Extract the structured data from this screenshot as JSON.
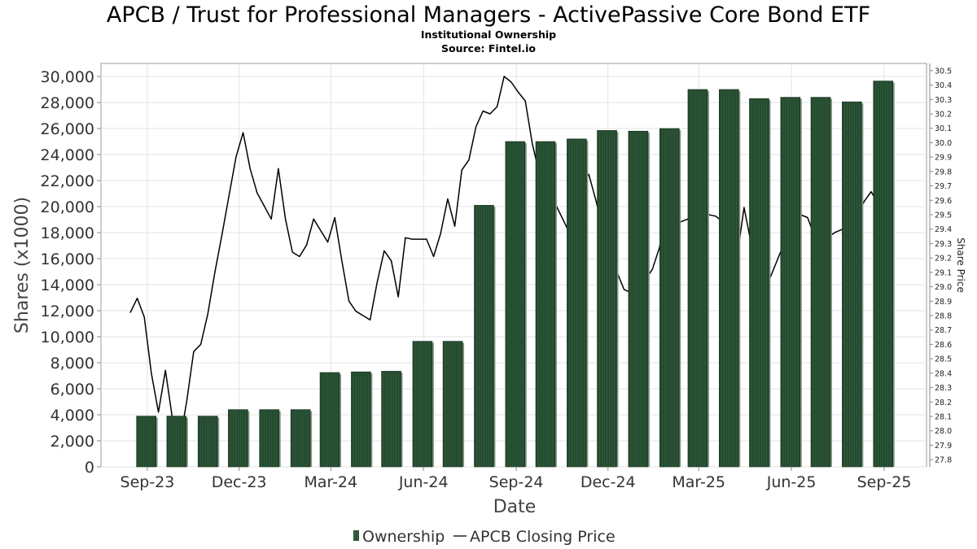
{
  "header": {
    "title": "APCB / Trust for Professional Managers - ActivePassive Core Bond ETF",
    "subtitle": "Institutional Ownership",
    "source": "Source: Fintel.io"
  },
  "colors": {
    "bar_fill": "#234a2e",
    "bar_shadow": "#8a9a8c",
    "price_line": "#000000",
    "grid": "#e3e3e3"
  },
  "chart_data": {
    "type": "bar",
    "xlabel": "Date",
    "ylabel": "Shares (x1000)",
    "ylabel_right": "Share Price",
    "ylim": [
      0,
      31000
    ],
    "y_ticks": [
      "0",
      "2,000",
      "4,000",
      "6,000",
      "8,000",
      "10,000",
      "12,000",
      "14,000",
      "16,000",
      "18,000",
      "20,000",
      "22,000",
      "24,000",
      "26,000",
      "28,000",
      "30,000"
    ],
    "y_tick_values": [
      0,
      2000,
      4000,
      6000,
      8000,
      10000,
      12000,
      14000,
      16000,
      18000,
      20000,
      22000,
      24000,
      26000,
      28000,
      30000
    ],
    "ylim_right": [
      27.75,
      30.55
    ],
    "y_ticks_right": [
      "27.8",
      "27.9",
      "28.0",
      "28.1",
      "28.2",
      "28.3",
      "28.4",
      "28.5",
      "28.6",
      "28.7",
      "28.8",
      "28.9",
      "29.0",
      "29.1",
      "29.2",
      "29.3",
      "29.4",
      "29.5",
      "29.6",
      "29.7",
      "29.8",
      "29.9",
      "30.0",
      "30.1",
      "30.2",
      "30.3",
      "30.4",
      "30.5"
    ],
    "y_tick_values_right": [
      27.8,
      27.9,
      28.0,
      28.1,
      28.2,
      28.3,
      28.4,
      28.5,
      28.6,
      28.7,
      28.8,
      28.9,
      29.0,
      29.1,
      29.2,
      29.3,
      29.4,
      29.5,
      29.6,
      29.7,
      29.8,
      29.9,
      30.0,
      30.1,
      30.2,
      30.3,
      30.4,
      30.5
    ],
    "xlim": [
      "2023-07-17",
      "2025-10-13"
    ],
    "x_ticks": [
      {
        "label": "Sep-23",
        "date": "2023-09-01"
      },
      {
        "label": "Dec-23",
        "date": "2023-12-01"
      },
      {
        "label": "Mar-24",
        "date": "2024-03-01"
      },
      {
        "label": "Jun-24",
        "date": "2024-06-01"
      },
      {
        "label": "Sep-24",
        "date": "2024-09-01"
      },
      {
        "label": "Dec-24",
        "date": "2024-12-01"
      },
      {
        "label": "Mar-25",
        "date": "2025-03-01"
      },
      {
        "label": "Jun-25",
        "date": "2025-06-01"
      },
      {
        "label": "Sep-25",
        "date": "2025-09-01"
      }
    ],
    "series": [
      {
        "name": "Ownership",
        "type": "bar",
        "points": [
          {
            "date": "2023-08-31",
            "value": 3900
          },
          {
            "date": "2023-09-30",
            "value": 3900
          },
          {
            "date": "2023-10-31",
            "value": 3900
          },
          {
            "date": "2023-11-30",
            "value": 4400
          },
          {
            "date": "2023-12-31",
            "value": 4400
          },
          {
            "date": "2024-01-31",
            "value": 4400
          },
          {
            "date": "2024-02-29",
            "value": 7250
          },
          {
            "date": "2024-03-31",
            "value": 7300
          },
          {
            "date": "2024-04-30",
            "value": 7350
          },
          {
            "date": "2024-05-31",
            "value": 9650
          },
          {
            "date": "2024-06-30",
            "value": 9650
          },
          {
            "date": "2024-07-31",
            "value": 20100
          },
          {
            "date": "2024-08-31",
            "value": 25000
          },
          {
            "date": "2024-09-30",
            "value": 25000
          },
          {
            "date": "2024-10-31",
            "value": 25200
          },
          {
            "date": "2024-11-30",
            "value": 25850
          },
          {
            "date": "2024-12-31",
            "value": 25800
          },
          {
            "date": "2025-01-31",
            "value": 26000
          },
          {
            "date": "2025-02-28",
            "value": 29000
          },
          {
            "date": "2025-03-31",
            "value": 29000
          },
          {
            "date": "2025-04-30",
            "value": 28300
          },
          {
            "date": "2025-05-31",
            "value": 28400
          },
          {
            "date": "2025-06-30",
            "value": 28400
          },
          {
            "date": "2025-07-31",
            "value": 28050
          },
          {
            "date": "2025-08-31",
            "value": 29650
          }
        ]
      },
      {
        "name": "APCB Closing Price",
        "type": "line",
        "points": [
          {
            "date": "2023-08-15",
            "value": 28.82
          },
          {
            "date": "2023-08-22",
            "value": 28.92
          },
          {
            "date": "2023-08-29",
            "value": 28.79
          },
          {
            "date": "2023-09-05",
            "value": 28.4
          },
          {
            "date": "2023-09-12",
            "value": 28.13
          },
          {
            "date": "2023-09-19",
            "value": 28.42
          },
          {
            "date": "2023-09-26",
            "value": 28.08
          },
          {
            "date": "2023-10-03",
            "value": 27.92
          },
          {
            "date": "2023-10-10",
            "value": 28.2
          },
          {
            "date": "2023-10-17",
            "value": 28.55
          },
          {
            "date": "2023-10-24",
            "value": 28.6
          },
          {
            "date": "2023-10-31",
            "value": 28.81
          },
          {
            "date": "2023-11-07",
            "value": 29.1
          },
          {
            "date": "2023-11-14",
            "value": 29.36
          },
          {
            "date": "2023-11-21",
            "value": 29.63
          },
          {
            "date": "2023-11-28",
            "value": 29.9
          },
          {
            "date": "2023-12-05",
            "value": 30.07
          },
          {
            "date": "2023-12-12",
            "value": 29.82
          },
          {
            "date": "2023-12-19",
            "value": 29.65
          },
          {
            "date": "2023-12-26",
            "value": 29.56
          },
          {
            "date": "2024-01-02",
            "value": 29.47
          },
          {
            "date": "2024-01-09",
            "value": 29.82
          },
          {
            "date": "2024-01-16",
            "value": 29.47
          },
          {
            "date": "2024-01-23",
            "value": 29.24
          },
          {
            "date": "2024-01-30",
            "value": 29.21
          },
          {
            "date": "2024-02-06",
            "value": 29.29
          },
          {
            "date": "2024-02-13",
            "value": 29.47
          },
          {
            "date": "2024-02-20",
            "value": 29.39
          },
          {
            "date": "2024-02-27",
            "value": 29.31
          },
          {
            "date": "2024-03-05",
            "value": 29.48
          },
          {
            "date": "2024-03-12",
            "value": 29.18
          },
          {
            "date": "2024-03-19",
            "value": 28.9
          },
          {
            "date": "2024-03-26",
            "value": 28.83
          },
          {
            "date": "2024-04-02",
            "value": 28.8
          },
          {
            "date": "2024-04-09",
            "value": 28.77
          },
          {
            "date": "2024-04-16",
            "value": 29.03
          },
          {
            "date": "2024-04-23",
            "value": 29.25
          },
          {
            "date": "2024-04-30",
            "value": 29.18
          },
          {
            "date": "2024-05-07",
            "value": 28.93
          },
          {
            "date": "2024-05-14",
            "value": 29.34
          },
          {
            "date": "2024-05-21",
            "value": 29.33
          },
          {
            "date": "2024-05-28",
            "value": 29.33
          },
          {
            "date": "2024-06-04",
            "value": 29.33
          },
          {
            "date": "2024-06-11",
            "value": 29.21
          },
          {
            "date": "2024-06-18",
            "value": 29.37
          },
          {
            "date": "2024-06-25",
            "value": 29.61
          },
          {
            "date": "2024-07-02",
            "value": 29.42
          },
          {
            "date": "2024-07-09",
            "value": 29.81
          },
          {
            "date": "2024-07-16",
            "value": 29.88
          },
          {
            "date": "2024-07-23",
            "value": 30.11
          },
          {
            "date": "2024-07-30",
            "value": 30.22
          },
          {
            "date": "2024-08-06",
            "value": 30.2
          },
          {
            "date": "2024-08-13",
            "value": 30.25
          },
          {
            "date": "2024-08-20",
            "value": 30.46
          },
          {
            "date": "2024-08-27",
            "value": 30.42
          },
          {
            "date": "2024-09-03",
            "value": 30.35
          },
          {
            "date": "2024-09-10",
            "value": 30.29
          },
          {
            "date": "2024-09-17",
            "value": 29.99
          },
          {
            "date": "2024-09-24",
            "value": 29.78
          },
          {
            "date": "2024-10-01",
            "value": 29.63
          },
          {
            "date": "2024-10-08",
            "value": 29.6
          },
          {
            "date": "2024-10-15",
            "value": 29.5
          },
          {
            "date": "2024-10-22",
            "value": 29.4
          },
          {
            "date": "2024-10-29",
            "value": 29.54
          },
          {
            "date": "2024-11-05",
            "value": 29.74
          },
          {
            "date": "2024-11-12",
            "value": 29.78
          },
          {
            "date": "2024-11-19",
            "value": 29.6
          },
          {
            "date": "2024-11-26",
            "value": 29.4
          },
          {
            "date": "2024-12-03",
            "value": 29.21
          },
          {
            "date": "2024-12-10",
            "value": 29.1
          },
          {
            "date": "2024-12-17",
            "value": 28.98
          },
          {
            "date": "2024-12-24",
            "value": 28.96
          },
          {
            "date": "2024-12-31",
            "value": 29.0
          },
          {
            "date": "2025-01-07",
            "value": 29.05
          },
          {
            "date": "2025-01-14",
            "value": 29.12
          },
          {
            "date": "2025-01-21",
            "value": 29.27
          },
          {
            "date": "2025-01-28",
            "value": 29.55
          },
          {
            "date": "2025-02-04",
            "value": 29.38
          },
          {
            "date": "2025-02-11",
            "value": 29.45
          },
          {
            "date": "2025-02-18",
            "value": 29.47
          },
          {
            "date": "2025-02-25",
            "value": 29.43
          },
          {
            "date": "2025-03-04",
            "value": 29.5
          },
          {
            "date": "2025-03-11",
            "value": 29.5
          },
          {
            "date": "2025-03-18",
            "value": 29.49
          },
          {
            "date": "2025-03-25",
            "value": 29.45
          },
          {
            "date": "2025-04-01",
            "value": 29.57
          },
          {
            "date": "2025-04-08",
            "value": 29.2
          },
          {
            "date": "2025-04-15",
            "value": 29.55
          },
          {
            "date": "2025-04-22",
            "value": 29.3
          },
          {
            "date": "2025-04-29",
            "value": 29.02
          },
          {
            "date": "2025-05-06",
            "value": 28.98
          },
          {
            "date": "2025-05-13",
            "value": 29.1
          },
          {
            "date": "2025-05-20",
            "value": 29.22
          },
          {
            "date": "2025-05-27",
            "value": 29.33
          },
          {
            "date": "2025-06-03",
            "value": 29.4
          },
          {
            "date": "2025-06-10",
            "value": 29.5
          },
          {
            "date": "2025-06-17",
            "value": 29.48
          },
          {
            "date": "2025-06-24",
            "value": 29.35
          },
          {
            "date": "2025-07-01",
            "value": 29.3
          },
          {
            "date": "2025-07-08",
            "value": 29.35
          },
          {
            "date": "2025-07-15",
            "value": 29.38
          },
          {
            "date": "2025-07-22",
            "value": 29.4
          },
          {
            "date": "2025-07-29",
            "value": 29.44
          },
          {
            "date": "2025-08-05",
            "value": 29.5
          },
          {
            "date": "2025-08-12",
            "value": 29.59
          },
          {
            "date": "2025-08-19",
            "value": 29.66
          },
          {
            "date": "2025-08-26",
            "value": 29.58
          }
        ]
      }
    ],
    "legend_position": "bottom-center",
    "grid": true
  },
  "legend": {
    "ownership_label": "Ownership",
    "price_label": "APCB Closing Price"
  }
}
